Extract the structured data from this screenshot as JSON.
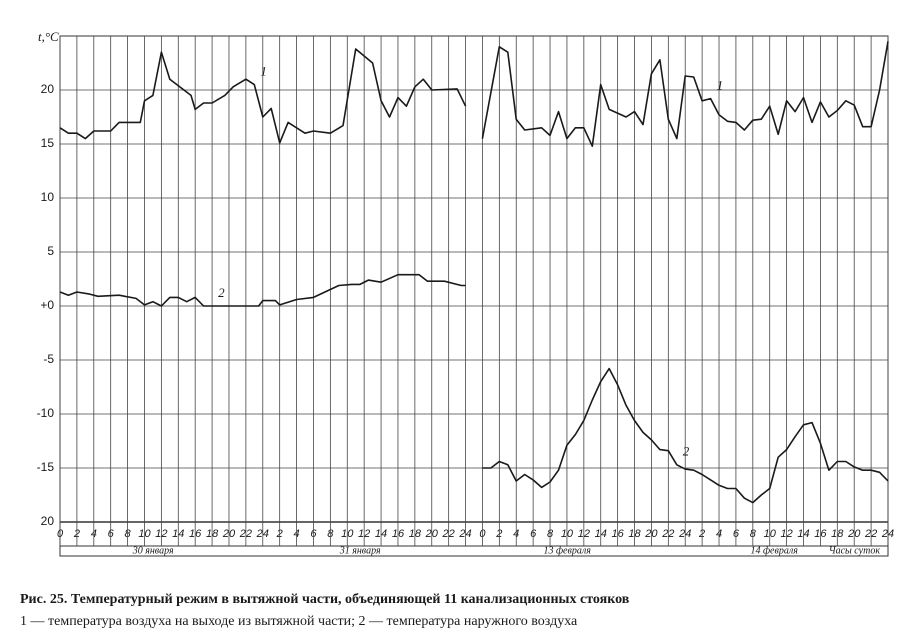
{
  "chart_data": {
    "type": "line",
    "ylabel": "t,°C",
    "xlabel": "Часы суток",
    "day_labels": [
      "30 января",
      "31 января",
      "13 февраля",
      "14 февраля"
    ],
    "caption": "Рис. 25. Температурный режим в вытяжной части, объединяющей 11 канализационных стояков",
    "caption_legend": "1 — температура воздуха на выходе из вытяжной части; 2 — температура наружного воздуха",
    "xlim": [
      0,
      98
    ],
    "ylim": [
      -20,
      25
    ],
    "yticks": [
      {
        "value": -20,
        "label": "20"
      },
      -15,
      -10,
      -5,
      {
        "value": 0,
        "label": "+0"
      },
      5,
      10,
      15,
      20
    ],
    "xticks": [
      0,
      2,
      4,
      6,
      8,
      10,
      12,
      14,
      16,
      18,
      20,
      22,
      {
        "value": 24,
        "label": "24"
      },
      {
        "value": 26,
        "label": "2"
      },
      {
        "value": 28,
        "label": "4"
      },
      {
        "value": 30,
        "label": "6"
      },
      {
        "value": 32,
        "label": "8"
      },
      {
        "value": 34,
        "label": "10"
      },
      {
        "value": 36,
        "label": "12"
      },
      {
        "value": 38,
        "label": "14"
      },
      {
        "value": 40,
        "label": "16"
      },
      {
        "value": 42,
        "label": "18"
      },
      {
        "value": 44,
        "label": "20"
      },
      {
        "value": 46,
        "label": "22"
      },
      {
        "value": 48,
        "label": "24"
      },
      {
        "value": 50,
        "label": "0"
      },
      {
        "value": 52,
        "label": "2"
      },
      {
        "value": 54,
        "label": "4"
      },
      {
        "value": 56,
        "label": "6"
      },
      {
        "value": 58,
        "label": "8"
      },
      {
        "value": 60,
        "label": "10"
      },
      {
        "value": 62,
        "label": "12"
      },
      {
        "value": 64,
        "label": "14"
      },
      {
        "value": 66,
        "label": "16"
      },
      {
        "value": 68,
        "label": "18"
      },
      {
        "value": 70,
        "label": "20"
      },
      {
        "value": 72,
        "label": "22"
      },
      {
        "value": 74,
        "label": "24"
      },
      {
        "value": 76,
        "label": "2"
      },
      {
        "value": 78,
        "label": "4"
      },
      {
        "value": 80,
        "label": "6"
      },
      {
        "value": 82,
        "label": "8"
      },
      {
        "value": 84,
        "label": "10"
      },
      {
        "value": 86,
        "label": "12"
      },
      {
        "value": 88,
        "label": "14"
      },
      {
        "value": 90,
        "label": "16"
      },
      {
        "value": 92,
        "label": "18"
      },
      {
        "value": 94,
        "label": "20"
      },
      {
        "value": 96,
        "label": "22"
      },
      {
        "value": 98,
        "label": "24"
      }
    ],
    "grid": true,
    "series": [
      {
        "name": "1",
        "color": "#1a1a1a",
        "x": [
          0,
          1,
          2,
          3,
          4,
          6,
          7,
          9.5,
          10,
          11,
          12,
          13,
          15.5,
          16,
          17,
          18,
          19.5,
          20.5,
          22,
          23,
          24,
          25,
          26,
          27,
          29,
          30,
          32,
          33.5,
          35,
          37,
          38,
          39,
          40,
          41,
          42,
          43,
          44,
          47,
          48,
          49,
          50,
          52,
          53,
          54,
          55,
          57,
          58,
          59,
          60,
          61,
          62,
          63,
          64,
          65,
          67,
          68,
          69,
          70,
          71,
          72,
          73,
          74,
          75,
          76,
          77,
          78,
          79,
          80,
          81,
          82,
          83,
          84,
          85,
          86,
          87,
          88,
          89,
          90,
          91,
          92,
          93,
          94,
          95,
          96,
          97,
          98
        ],
        "values": [
          16.5,
          16,
          16,
          15.5,
          16.2,
          16.2,
          17,
          17,
          19,
          19.5,
          23.5,
          21,
          19.5,
          18.2,
          18.8,
          18.8,
          19.5,
          20.3,
          21,
          20.5,
          17.5,
          18.3,
          15.1,
          17,
          16,
          16.2,
          16,
          16.7,
          23.8,
          22.5,
          19,
          17.5,
          19.3,
          18.5,
          20.3,
          21,
          20,
          20.1,
          18.5,
          null,
          15.5,
          24,
          23.5,
          17.3,
          16.3,
          16.5,
          15.8,
          18,
          15.5,
          16.5,
          16.5,
          14.8,
          20.5,
          18.2,
          17.5,
          18,
          16.8,
          21.5,
          22.8,
          17.3,
          15.5,
          21.3,
          21.2,
          19,
          19.2,
          17.7,
          17.1,
          17,
          16.3,
          17.2,
          17.3,
          18.5,
          15.9,
          19,
          18,
          19.3,
          17,
          18.9,
          17.5,
          18.1,
          19,
          18.6,
          16.6,
          16.6,
          20,
          24.5
        ]
      },
      {
        "name": "2",
        "color": "#1a1a1a",
        "x": [
          0,
          1,
          2,
          3.5,
          4.5,
          7,
          9,
          10,
          11,
          12,
          13,
          14,
          15,
          16,
          17,
          18,
          23.5,
          24,
          25.5,
          26,
          28,
          30,
          33,
          34.5,
          35.5,
          36.5,
          38,
          40,
          42.5,
          43.5,
          45.5,
          47.5,
          48,
          49,
          50,
          51,
          52,
          53,
          54,
          55,
          56,
          57,
          58,
          59,
          60,
          61,
          62,
          63,
          64,
          65,
          66,
          67,
          68,
          69,
          70,
          71,
          72,
          73,
          74,
          75,
          76,
          77,
          78,
          79,
          80,
          81,
          82,
          83,
          84,
          85,
          86,
          87,
          88,
          89,
          90,
          91,
          92,
          93,
          94,
          95,
          96,
          97,
          98
        ],
        "values": [
          1.3,
          1,
          1.3,
          1.1,
          0.9,
          1,
          0.7,
          0.1,
          0.4,
          0,
          0.8,
          0.8,
          0.4,
          0.8,
          0,
          0,
          0,
          0.5,
          0.5,
          0.1,
          0.6,
          0.8,
          1.9,
          2,
          2,
          2.4,
          2.2,
          2.9,
          2.9,
          2.3,
          2.3,
          1.9,
          1.9,
          null,
          -15,
          -15,
          -14.4,
          -14.7,
          -16.2,
          -15.6,
          -16.1,
          -16.8,
          -16.3,
          -15.2,
          -12.9,
          -11.9,
          -10.6,
          -8.7,
          -7,
          -5.8,
          -7.3,
          -9.2,
          -10.6,
          -11.7,
          -12.4,
          -13.3,
          -13.4,
          -14.7,
          -15.1,
          -15.2,
          -15.6,
          -16.1,
          -16.6,
          -16.9,
          -16.9,
          -17.8,
          -18.2,
          -17.5,
          -16.9,
          -14,
          -13.3,
          -12.1,
          -11,
          -10.8,
          -12.7,
          -15.2,
          -14.4,
          -14.4,
          -14.9,
          -15.2,
          -15.2,
          -15.4,
          -16.2
        ]
      }
    ]
  }
}
